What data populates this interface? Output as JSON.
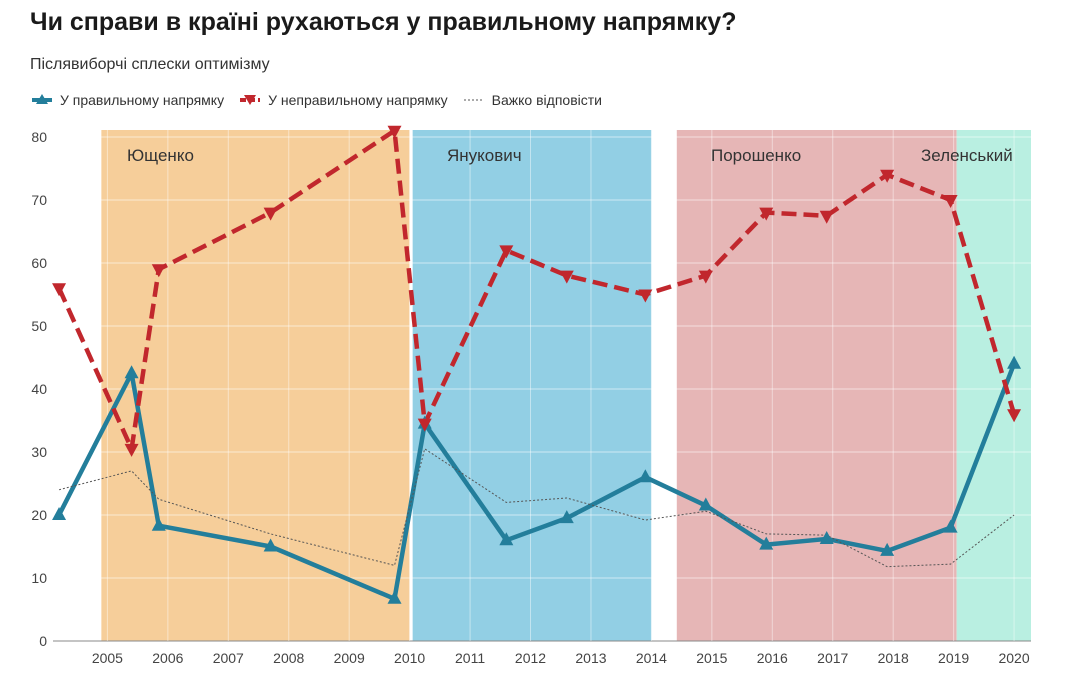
{
  "header": {
    "title": "Чи справи в країні рухаються у правильному напрямку?",
    "subtitle": "Післявиборчі сплески оптимізму"
  },
  "legend": {
    "right_label": "У правильному напрямку",
    "wrong_label": "У неправильному напрямку",
    "hard_label": "Важко відповісти"
  },
  "colors": {
    "right": "#237e9b",
    "wrong": "#c1272d",
    "hard": "#555555",
    "era_yushchenko": "#f6ce9a",
    "era_yanukovych": "#92cfe4",
    "era_poroshenko": "#e6b6b6",
    "era_zelensky": "#b9efe1"
  },
  "chart_data": {
    "type": "line",
    "xlim": [
      2004.1,
      2020.28
    ],
    "ylim": [
      0,
      80
    ],
    "x_ticks": [
      2005,
      2006,
      2007,
      2008,
      2009,
      2010,
      2011,
      2012,
      2013,
      2014,
      2015,
      2016,
      2017,
      2018,
      2019,
      2020
    ],
    "y_ticks": [
      0,
      10,
      20,
      30,
      40,
      50,
      60,
      70,
      80
    ],
    "eras": [
      {
        "name": "Ющенко",
        "start": 2004.9,
        "end": 2010.0
      },
      {
        "name": "Янукович",
        "start": 2010.05,
        "end": 2014.0
      },
      {
        "name": "Порошенко",
        "start": 2014.42,
        "end": 2019.05
      },
      {
        "name": "Зеленський",
        "start": 2019.05,
        "end": 2020.3
      }
    ],
    "series": [
      {
        "name": "У правильному напрямку",
        "key": "right",
        "x": [
          2004.2,
          2005.4,
          2005.85,
          2007.7,
          2009.75,
          2010.25,
          2011.6,
          2012.6,
          2013.9,
          2014.9,
          2015.9,
          2016.9,
          2017.9,
          2018.95,
          2020.0
        ],
        "y": [
          20,
          42.5,
          18.3,
          15,
          6.7,
          34.5,
          16,
          19.5,
          26,
          21.5,
          15.3,
          16.2,
          14.3,
          18,
          44
        ]
      },
      {
        "name": "У неправильному напрямку",
        "key": "wrong",
        "x": [
          2004.2,
          2005.4,
          2005.85,
          2007.7,
          2009.75,
          2010.25,
          2011.6,
          2012.6,
          2013.9,
          2014.9,
          2015.9,
          2016.9,
          2017.9,
          2018.95,
          2020.0
        ],
        "y": [
          56,
          30.5,
          59,
          68,
          81,
          34.5,
          62,
          58,
          55,
          58,
          68,
          67.5,
          74,
          70,
          36
        ]
      },
      {
        "name": "Важко відповісти",
        "key": "hard",
        "x": [
          2004.2,
          2005.4,
          2005.85,
          2007.7,
          2009.75,
          2010.25,
          2011.6,
          2012.6,
          2013.9,
          2014.9,
          2015.9,
          2016.9,
          2017.9,
          2018.95,
          2020.0
        ],
        "y": [
          24,
          27,
          22.5,
          17,
          12,
          30.5,
          22,
          22.7,
          19.2,
          20.6,
          17,
          16.8,
          11.8,
          12.2,
          20
        ]
      }
    ]
  }
}
